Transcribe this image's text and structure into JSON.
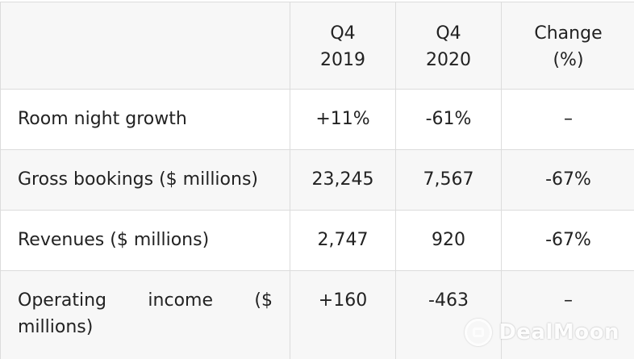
{
  "table": {
    "headers": [
      {
        "line1": "",
        "line2": ""
      },
      {
        "line1": "Q4",
        "line2": "2019"
      },
      {
        "line1": "Q4",
        "line2": "2020"
      },
      {
        "line1": "Change",
        "line2": "(%)"
      }
    ],
    "rows": [
      {
        "label": "Room night growth",
        "q4_2019": "+11%",
        "q4_2020": "-61%",
        "change": "–"
      },
      {
        "label": "Gross bookings ($ millions)",
        "q4_2019": "23,245",
        "q4_2020": "7,567",
        "change": "-67%"
      },
      {
        "label": "Revenues ($ millions)",
        "q4_2019": "2,747",
        "q4_2020": "920",
        "change": "-67%"
      },
      {
        "label": "Operating income ($ millions)",
        "q4_2019": "+160",
        "q4_2020": "-463",
        "change": "–"
      }
    ]
  },
  "watermark": {
    "icon": "dealmoon-logo-icon",
    "text": "DealMoon"
  },
  "colors": {
    "header_bg": "#f7f7f7",
    "border": "#dcdcdc",
    "text": "#222222"
  }
}
